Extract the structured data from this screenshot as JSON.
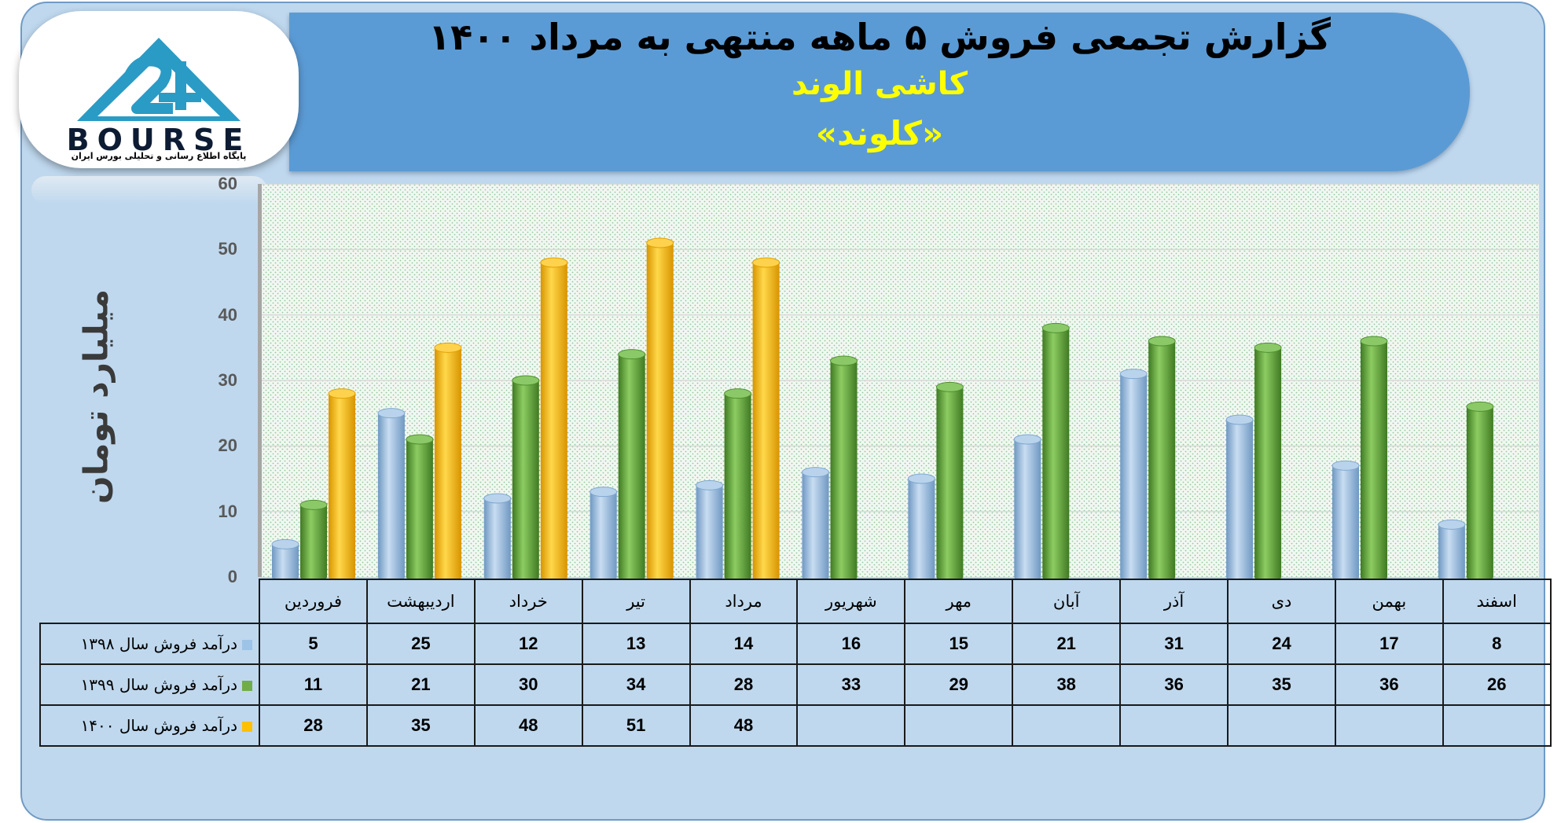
{
  "header": {
    "title": "گزارش تجمعی فروش ۵ ماهه منتهی به مرداد ۱۴۰۰",
    "company": "کاشی الوند",
    "symbol": "«کلوند»"
  },
  "logo": {
    "text": "BOURSE",
    "subtitle": "پایگاه اطلاع رسانی و تحلیلی بورس ایران"
  },
  "chart_data": {
    "type": "bar",
    "ylabel": "میلیارد تومان",
    "ylim": [
      0,
      60
    ],
    "yticks": [
      0,
      10,
      20,
      30,
      40,
      50,
      60
    ],
    "grid": true,
    "categories": [
      "فروردین",
      "اردیبهشت",
      "خرداد",
      "تیر",
      "مرداد",
      "شهریور",
      "مهر",
      "آبان",
      "آذر",
      "دی",
      "بهمن",
      "اسفند"
    ],
    "series": [
      {
        "name": "درآمد فروش سال ۱۳۹۸",
        "color": "#9dc3e6",
        "values": [
          5,
          25,
          12,
          13,
          14,
          16,
          15,
          21,
          31,
          24,
          17,
          8
        ]
      },
      {
        "name": "درآمد فروش سال ۱۳۹۹",
        "color": "#70ad47",
        "values": [
          11,
          21,
          30,
          34,
          28,
          33,
          29,
          38,
          36,
          35,
          36,
          26
        ]
      },
      {
        "name": "درآمد فروش سال ۱۴۰۰",
        "color": "#ffc000",
        "values": [
          28,
          35,
          48,
          51,
          48,
          null,
          null,
          null,
          null,
          null,
          null,
          null
        ]
      }
    ],
    "legend": "table-bottom"
  }
}
